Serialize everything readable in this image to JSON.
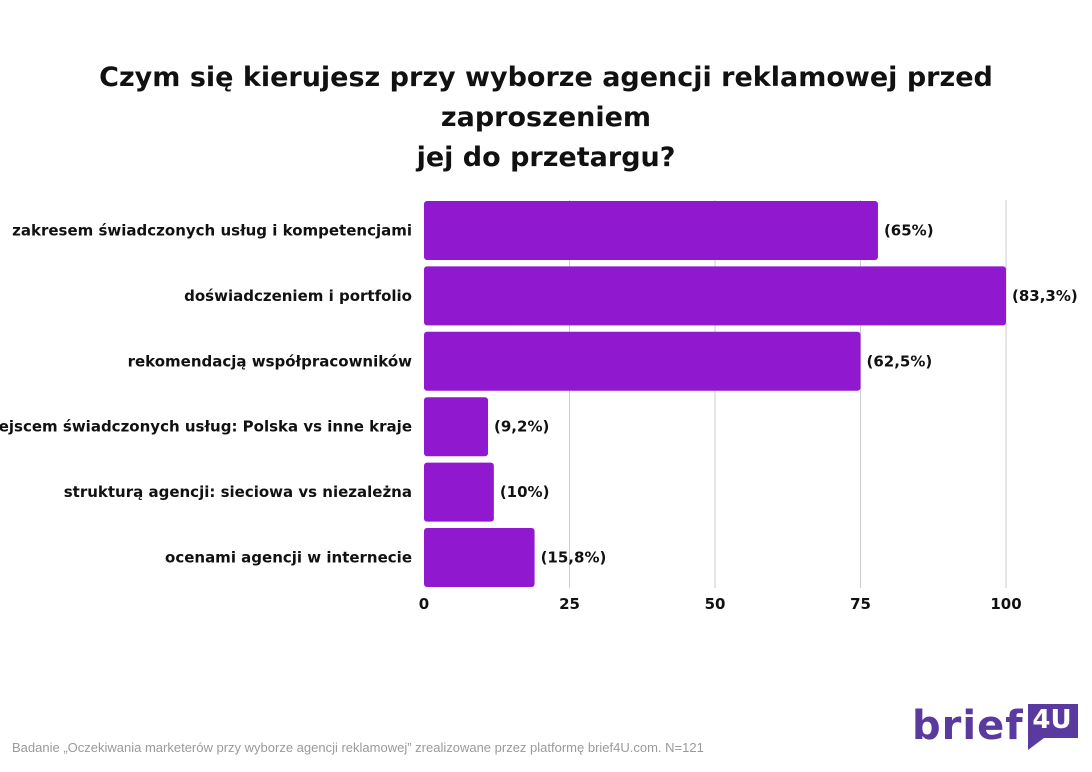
{
  "chart_data": {
    "type": "bar",
    "orientation": "horizontal",
    "title": [
      "Czym się kierujesz przy wyborze agencji reklamowej przed zaproszeniem",
      "jej do przetargu?"
    ],
    "categories": [
      "zakresem świadczonych usług i kompetencjami",
      "doświadczeniem i portfolio",
      "rekomendacją współpracowników",
      "miejscem świadczonych usług: Polska vs inne kraje",
      "strukturą agencji: sieciowa vs niezależna",
      "ocenami agencji w internecie"
    ],
    "values": [
      78,
      100,
      75,
      11,
      12,
      19
    ],
    "value_labels": [
      "(65%)",
      "(83,3%)",
      "(62,5%)",
      "(9,2%)",
      "(10%)",
      "(15,8%)"
    ],
    "xlim": [
      0,
      100
    ],
    "xticks": [
      0,
      25,
      50,
      75,
      100
    ],
    "grid": true,
    "bar_color": "#9019cf",
    "grid_color": "#cccccc"
  },
  "footnote": "Badanie „Oczekiwania marketerów przy wyborze agencji reklamowej” zrealizowane przez platformę brief4U.com. N=121",
  "logo": {
    "word": "brief",
    "badge": "4U",
    "word_color": "#5a3a9e",
    "badge_color": "#5a3a9e"
  }
}
